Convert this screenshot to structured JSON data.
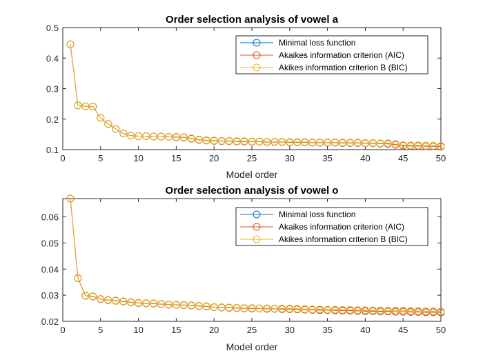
{
  "chart_data": [
    {
      "type": "line",
      "title": "Order selection analysis of vowel a",
      "xlabel": "Model order",
      "ylabel": "",
      "xlim": [
        0,
        50
      ],
      "ylim": [
        0.1,
        0.5
      ],
      "xticks": [
        0,
        5,
        10,
        15,
        20,
        25,
        30,
        35,
        40,
        45,
        50
      ],
      "yticks": [
        0.1,
        0.2,
        0.3,
        0.4,
        0.5
      ],
      "ytick_labels": [
        "0.1",
        "0.2",
        "0.3",
        "0.4",
        "0.5"
      ],
      "grid": false,
      "legend_position": "top-right",
      "marker": "circle",
      "x": [
        1,
        2,
        3,
        4,
        5,
        6,
        7,
        8,
        9,
        10,
        11,
        12,
        13,
        14,
        15,
        16,
        17,
        18,
        19,
        20,
        21,
        22,
        23,
        24,
        25,
        26,
        27,
        28,
        29,
        30,
        31,
        32,
        33,
        34,
        35,
        36,
        37,
        38,
        39,
        40,
        41,
        42,
        43,
        44,
        45,
        46,
        47,
        48,
        49,
        50
      ],
      "series": [
        {
          "name": "Minimal loss function",
          "color": "#0072BD",
          "values": [
            0.445,
            0.245,
            0.242,
            0.241,
            0.204,
            0.184,
            0.168,
            0.153,
            0.146,
            0.144,
            0.144,
            0.143,
            0.143,
            0.142,
            0.141,
            0.14,
            0.136,
            0.132,
            0.13,
            0.129,
            0.128,
            0.128,
            0.127,
            0.127,
            0.126,
            0.126,
            0.125,
            0.125,
            0.125,
            0.124,
            0.124,
            0.124,
            0.123,
            0.123,
            0.123,
            0.123,
            0.122,
            0.122,
            0.122,
            0.121,
            0.121,
            0.12,
            0.119,
            0.116,
            0.113,
            0.112,
            0.112,
            0.111,
            0.111,
            0.11
          ]
        },
        {
          "name": "Akaikes information criterion (AIC)",
          "color": "#D95319",
          "values": [
            0.445,
            0.245,
            0.242,
            0.241,
            0.204,
            0.184,
            0.168,
            0.153,
            0.146,
            0.144,
            0.144,
            0.143,
            0.143,
            0.142,
            0.141,
            0.14,
            0.136,
            0.132,
            0.13,
            0.129,
            0.128,
            0.128,
            0.127,
            0.127,
            0.126,
            0.126,
            0.125,
            0.125,
            0.125,
            0.124,
            0.124,
            0.124,
            0.123,
            0.123,
            0.123,
            0.123,
            0.122,
            0.122,
            0.122,
            0.121,
            0.121,
            0.12,
            0.119,
            0.116,
            0.113,
            0.112,
            0.112,
            0.111,
            0.111,
            0.11
          ]
        },
        {
          "name": "Akikes information criterion B (BIC)",
          "color": "#EDB120",
          "values": [
            0.445,
            0.245,
            0.242,
            0.241,
            0.204,
            0.184,
            0.168,
            0.153,
            0.146,
            0.144,
            0.144,
            0.143,
            0.143,
            0.142,
            0.142,
            0.141,
            0.137,
            0.133,
            0.131,
            0.13,
            0.129,
            0.129,
            0.128,
            0.128,
            0.127,
            0.127,
            0.126,
            0.126,
            0.126,
            0.125,
            0.125,
            0.125,
            0.124,
            0.124,
            0.124,
            0.124,
            0.123,
            0.123,
            0.123,
            0.122,
            0.122,
            0.121,
            0.121,
            0.118,
            0.115,
            0.114,
            0.114,
            0.113,
            0.113,
            0.112
          ]
        }
      ]
    },
    {
      "type": "line",
      "title": "Order selection analysis of vowel o",
      "xlabel": "Model order",
      "ylabel": "",
      "xlim": [
        0,
        50
      ],
      "ylim": [
        0.02,
        0.067
      ],
      "xticks": [
        0,
        5,
        10,
        15,
        20,
        25,
        30,
        35,
        40,
        45,
        50
      ],
      "yticks": [
        0.02,
        0.03,
        0.04,
        0.05,
        0.06
      ],
      "ytick_labels": [
        "0.02",
        "0.03",
        "0.04",
        "0.05",
        "0.06"
      ],
      "grid": false,
      "legend_position": "top-right",
      "marker": "circle",
      "x": [
        1,
        2,
        3,
        4,
        5,
        6,
        7,
        8,
        9,
        10,
        11,
        12,
        13,
        14,
        15,
        16,
        17,
        18,
        19,
        20,
        21,
        22,
        23,
        24,
        25,
        26,
        27,
        28,
        29,
        30,
        31,
        32,
        33,
        34,
        35,
        36,
        37,
        38,
        39,
        40,
        41,
        42,
        43,
        44,
        45,
        46,
        47,
        48,
        49,
        50
      ],
      "series": [
        {
          "name": "Minimal loss function",
          "color": "#0072BD",
          "values": [
            0.067,
            0.0365,
            0.0298,
            0.0295,
            0.0285,
            0.0281,
            0.0279,
            0.0276,
            0.0273,
            0.027,
            0.0269,
            0.0268,
            0.0266,
            0.0264,
            0.0263,
            0.0262,
            0.0261,
            0.0259,
            0.0257,
            0.0254,
            0.0253,
            0.0252,
            0.0251,
            0.025,
            0.0249,
            0.0249,
            0.0248,
            0.0248,
            0.0247,
            0.0247,
            0.0246,
            0.0245,
            0.0244,
            0.0243,
            0.0243,
            0.0242,
            0.0241,
            0.0241,
            0.024,
            0.0239,
            0.0239,
            0.0238,
            0.0238,
            0.0237,
            0.0237,
            0.0236,
            0.0236,
            0.0235,
            0.0235,
            0.0234
          ]
        },
        {
          "name": "Akaikes information criterion (AIC)",
          "color": "#D95319",
          "values": [
            0.067,
            0.0365,
            0.0298,
            0.0295,
            0.0285,
            0.0281,
            0.0279,
            0.0276,
            0.0273,
            0.027,
            0.0269,
            0.0268,
            0.0266,
            0.0264,
            0.0263,
            0.0262,
            0.0261,
            0.0259,
            0.0257,
            0.0254,
            0.0253,
            0.0252,
            0.0251,
            0.025,
            0.0249,
            0.0249,
            0.0248,
            0.0248,
            0.0247,
            0.0247,
            0.0246,
            0.0245,
            0.0244,
            0.0243,
            0.0243,
            0.0242,
            0.0241,
            0.0241,
            0.024,
            0.0239,
            0.0239,
            0.0238,
            0.0238,
            0.0237,
            0.0237,
            0.0236,
            0.0236,
            0.0235,
            0.0235,
            0.0234
          ]
        },
        {
          "name": "Akikes information criterion B (BIC)",
          "color": "#EDB120",
          "values": [
            0.067,
            0.0366,
            0.0299,
            0.0296,
            0.0286,
            0.0282,
            0.028,
            0.0277,
            0.0274,
            0.0271,
            0.027,
            0.0269,
            0.0267,
            0.0265,
            0.0264,
            0.0263,
            0.0262,
            0.026,
            0.0258,
            0.0255,
            0.0254,
            0.0253,
            0.0252,
            0.0251,
            0.0251,
            0.025,
            0.025,
            0.0249,
            0.0249,
            0.0249,
            0.0248,
            0.0247,
            0.0246,
            0.0246,
            0.0245,
            0.0245,
            0.0244,
            0.0244,
            0.0243,
            0.0243,
            0.0242,
            0.0242,
            0.0241,
            0.0241,
            0.0241,
            0.024,
            0.024,
            0.0239,
            0.0239,
            0.0238
          ]
        }
      ]
    }
  ]
}
